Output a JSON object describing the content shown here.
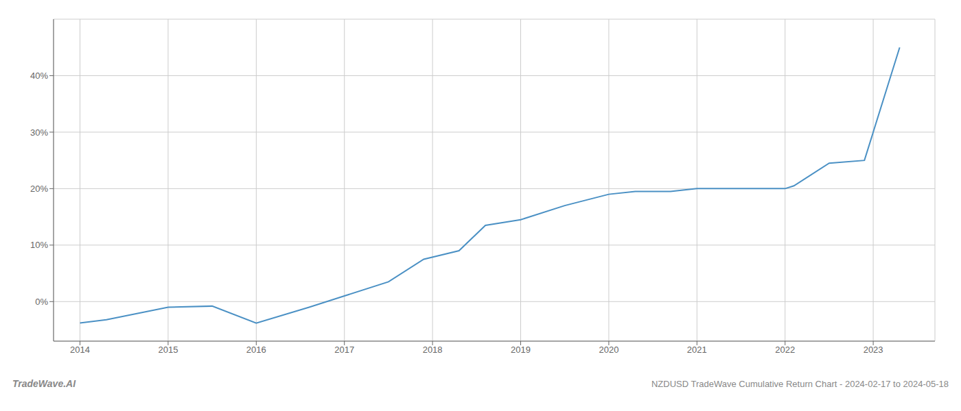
{
  "chart_data": {
    "type": "line",
    "title": "NZDUSD TradeWave Cumulative Return Chart - 2024-02-17 to 2024-05-18",
    "annotations": [
      "TradeWave.AI"
    ],
    "color": "#4a90c4",
    "x": [
      2014.0,
      2014.3,
      2015.0,
      2015.5,
      2016.0,
      2016.6,
      2017.0,
      2017.5,
      2017.9,
      2018.3,
      2018.6,
      2019.0,
      2019.5,
      2020.0,
      2020.3,
      2020.7,
      2021.0,
      2021.5,
      2022.0,
      2022.1,
      2022.5,
      2022.9,
      2023.3
    ],
    "values": [
      -3.8,
      -3.2,
      -1.0,
      -0.8,
      -3.8,
      -1.0,
      1.0,
      3.5,
      7.5,
      9.0,
      13.5,
      14.5,
      17.0,
      19.0,
      19.5,
      19.5,
      20.0,
      20.0,
      20.0,
      20.5,
      24.5,
      25.0,
      45.0
    ],
    "xlim": [
      2013.7,
      2023.7
    ],
    "xticks": [
      2014,
      2015,
      2016,
      2017,
      2018,
      2019,
      2020,
      2021,
      2022,
      2023
    ],
    "ylim": [
      -7,
      50
    ],
    "yticks": [
      {
        "value": 0,
        "label": "0%"
      },
      {
        "value": 10,
        "label": "10%"
      },
      {
        "value": 20,
        "label": "20%"
      },
      {
        "value": 30,
        "label": "30%"
      },
      {
        "value": 40,
        "label": "40%"
      }
    ],
    "grid": true
  }
}
